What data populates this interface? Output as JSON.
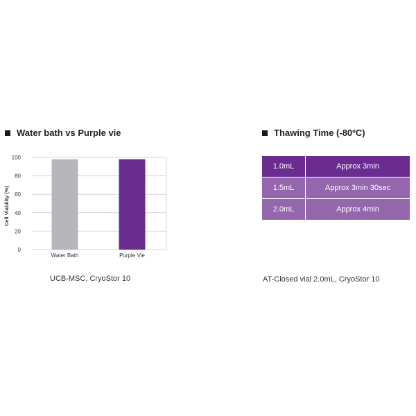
{
  "left_panel": {
    "title": "Water bath vs Purple vie",
    "caption": "UCB-MSC, CryoStor 10"
  },
  "right_panel": {
    "title": "Thawing Time (-80ºC)",
    "rows": [
      {
        "volume": "1.0mL",
        "time": "Approx 3min"
      },
      {
        "volume": "1.5mL",
        "time": "Approx 3min 30sec"
      },
      {
        "volume": "2.0mL",
        "time": "Approx 4min"
      }
    ],
    "caption": "AT-Closed vial 2.0mL, CryoStor 10"
  },
  "colors": {
    "purple_dark": "#6a2c91",
    "purple_light": "#9466ad",
    "bar_gray": "#b6b7ba",
    "grid": "#d6d6d6"
  },
  "chart_data": {
    "type": "bar",
    "categories": [
      "Water Bath",
      "Purple Vie"
    ],
    "values": [
      98,
      98
    ],
    "bar_colors": [
      "#b6b7ba",
      "#6a2c91"
    ],
    "title": "",
    "xlabel": "",
    "ylabel": "Cell Viability (%)",
    "ylim": [
      0,
      100
    ],
    "yticks": [
      0,
      20,
      40,
      60,
      80,
      100
    ],
    "grid": true
  }
}
